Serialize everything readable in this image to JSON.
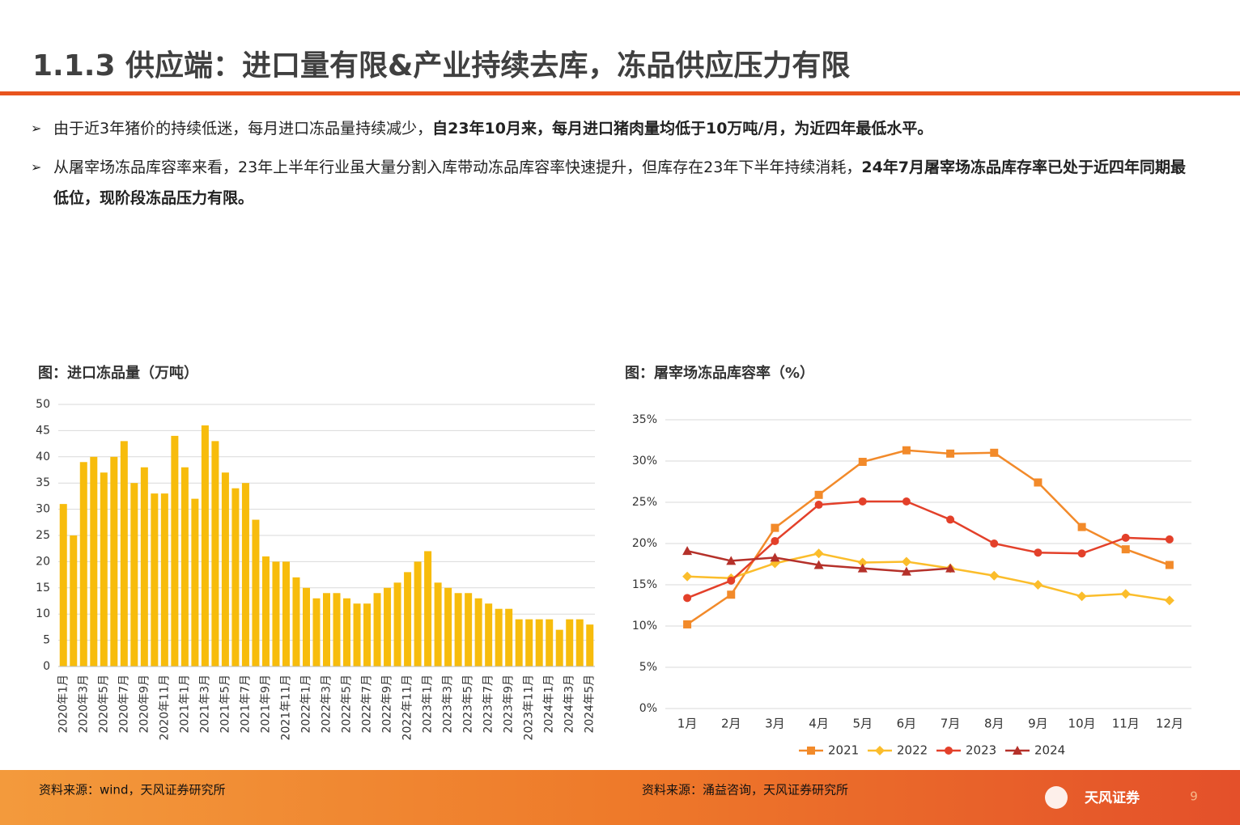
{
  "header": {
    "title": "1.1.3 供应端：进口量有限&产业持续去库，冻品供应压力有限"
  },
  "bullets": [
    [
      {
        "text": "由于近3年猪价的持续低迷，每月进口冻品量持续减少，",
        "bold": false
      },
      {
        "text": "自23年10月来，每月进口猪肉量均低于10万吨/月，为近四年最低水平。",
        "bold": true
      }
    ],
    [
      {
        "text": "从屠宰场冻品库容率来看，23年上半年行业虽大量分割入库带动冻品库容率快速提升，但库存在23年下半年持续消耗，",
        "bold": false
      },
      {
        "text": "24年7月屠宰场冻品库存率已处于近四年同期最低位，现阶段冻品压力有限。",
        "bold": true
      }
    ]
  ],
  "chart_data": [
    {
      "type": "bar",
      "title": "图：进口冻品量（万吨）",
      "source": "资料来源：wind，天风证券研究所",
      "categories": [
        "2020年1月",
        null,
        "2020年3月",
        null,
        "2020年5月",
        null,
        "2020年7月",
        null,
        "2020年9月",
        null,
        "2020年11月",
        null,
        "2021年1月",
        null,
        "2021年3月",
        null,
        "2021年5月",
        null,
        "2021年7月",
        null,
        "2021年9月",
        null,
        "2021年11月",
        null,
        "2022年1月",
        null,
        "2022年3月",
        null,
        "2022年5月",
        null,
        "2022年7月",
        null,
        "2022年9月",
        null,
        "2022年11月",
        null,
        "2023年1月",
        null,
        "2023年3月",
        null,
        "2023年5月",
        null,
        "2023年7月",
        null,
        "2023年9月",
        null,
        "2023年11月",
        null,
        "2024年1月",
        null,
        "2024年3月",
        null,
        "2024年5月"
      ],
      "values": [
        31,
        25,
        39,
        40,
        37,
        40,
        43,
        35,
        38,
        33,
        33,
        44,
        38,
        32,
        46,
        43,
        37,
        34,
        35,
        28,
        21,
        20,
        20,
        17,
        15,
        13,
        14,
        14,
        13,
        12,
        12,
        14,
        15,
        16,
        18,
        20,
        22,
        16,
        15,
        14,
        14,
        13,
        12,
        11,
        11,
        9,
        9,
        9,
        9,
        7,
        9,
        9,
        8
      ],
      "color": "#f7bc0c",
      "ylim": [
        0,
        50
      ],
      "yticks": [
        0,
        5,
        10,
        15,
        20,
        25,
        30,
        35,
        40,
        45,
        50
      ],
      "grid": true
    },
    {
      "type": "line",
      "title": "图：屠宰场冻品库容率（%）",
      "source": "资料来源：涌益咨询，天风证券研究所",
      "categories": [
        "1月",
        "2月",
        "3月",
        "4月",
        "5月",
        "6月",
        "7月",
        "8月",
        "9月",
        "10月",
        "11月",
        "12月"
      ],
      "series": [
        {
          "name": "2021",
          "color": "#f28a2a",
          "marker": "square",
          "values": [
            10.2,
            13.8,
            21.9,
            25.9,
            29.9,
            31.3,
            30.9,
            31.0,
            27.4,
            22.0,
            19.3,
            17.4
          ]
        },
        {
          "name": "2022",
          "color": "#fbbd2b",
          "marker": "diamond",
          "values": [
            16.0,
            15.8,
            17.6,
            18.8,
            17.7,
            17.8,
            17.0,
            16.1,
            15.0,
            13.6,
            13.9,
            13.1
          ]
        },
        {
          "name": "2023",
          "color": "#e3402a",
          "marker": "circle",
          "values": [
            13.4,
            15.5,
            20.3,
            24.7,
            25.1,
            25.1,
            22.9,
            20.0,
            18.9,
            18.8,
            20.7,
            20.5
          ]
        },
        {
          "name": "2024",
          "color": "#b5312a",
          "marker": "triangle",
          "values": [
            19.1,
            17.9,
            18.3,
            17.4,
            17.0,
            16.6,
            17.0,
            null,
            null,
            null,
            null,
            null
          ]
        }
      ],
      "ylim": [
        0,
        35
      ],
      "yticks": [
        {
          "value": 0,
          "label": "0%"
        },
        {
          "value": 5,
          "label": "5%"
        },
        {
          "value": 10,
          "label": "10%"
        },
        {
          "value": 15,
          "label": "15%"
        },
        {
          "value": 20,
          "label": "20%"
        },
        {
          "value": 25,
          "label": "25%"
        },
        {
          "value": 30,
          "label": "30%"
        },
        {
          "value": 35,
          "label": "35%"
        }
      ],
      "grid": true,
      "legend": "bottom"
    }
  ],
  "footer": {
    "logo": "天风证券",
    "page": "9"
  }
}
